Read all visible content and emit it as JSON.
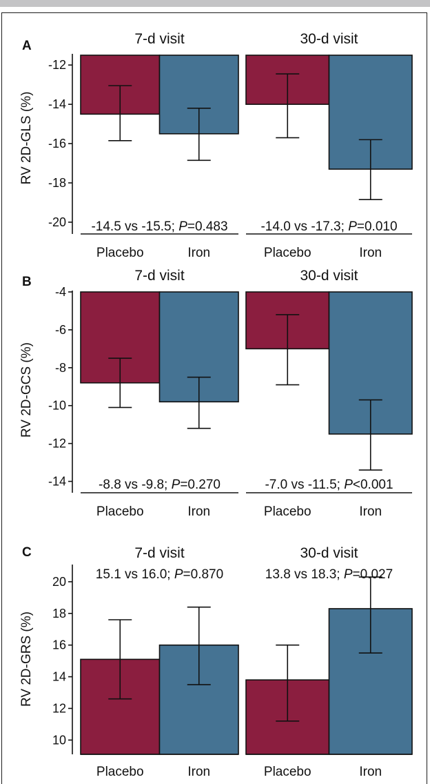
{
  "colors": {
    "placebo": "#8b1e3f",
    "iron": "#457393",
    "axis": "#111111"
  },
  "chart_data": [
    {
      "panel": "A",
      "type": "bar",
      "ylabel": "RV 2D-GLS (%)",
      "ylim": [
        -20.6,
        -11.5
      ],
      "yticks": [
        -12,
        -14,
        -16,
        -18,
        -20
      ],
      "bars_from": "top",
      "categories": [
        "Placebo",
        "Iron"
      ],
      "facets": [
        {
          "title": "7-d visit",
          "values": [
            -14.5,
            -15.5
          ],
          "error_low": [
            -15.85,
            -16.85
          ],
          "error_high": [
            -13.05,
            -14.2
          ],
          "annotation_prefix": "-14.5 vs -15.5; ",
          "p_label": "P",
          "p_value": "=0.483"
        },
        {
          "title": "30-d visit",
          "values": [
            -14.0,
            -17.3
          ],
          "error_low": [
            -15.7,
            -18.85
          ],
          "error_high": [
            -12.45,
            -15.8
          ],
          "annotation_prefix": "-14.0 vs -17.3; ",
          "p_label": "P",
          "p_value": "=0.010"
        }
      ]
    },
    {
      "panel": "B",
      "type": "bar",
      "ylabel": "RV 2D-GCS (%)",
      "ylim": [
        -14.6,
        -4.0
      ],
      "yticks": [
        -4,
        -6,
        -8,
        -10,
        -12,
        -14
      ],
      "bars_from": "top",
      "categories": [
        "Placebo",
        "Iron"
      ],
      "facets": [
        {
          "title": "7-d visit",
          "values": [
            -8.8,
            -9.8
          ],
          "error_low": [
            -10.1,
            -11.2
          ],
          "error_high": [
            -7.5,
            -8.5
          ],
          "annotation_prefix": "-8.8 vs -9.8; ",
          "p_label": "P",
          "p_value": "=0.270"
        },
        {
          "title": "30-d visit",
          "values": [
            -7.0,
            -11.5
          ],
          "error_low": [
            -8.9,
            -13.4
          ],
          "error_high": [
            -5.2,
            -9.7
          ],
          "annotation_prefix": "-7.0 vs -11.5; ",
          "p_label": "P",
          "p_value": "<0.001"
        }
      ]
    },
    {
      "panel": "C",
      "type": "bar",
      "ylabel": "RV 2D-GRS (%)",
      "ylim": [
        9.1,
        21.0
      ],
      "yticks": [
        10,
        12,
        14,
        16,
        18,
        20
      ],
      "bars_from": "bottom",
      "categories": [
        "Placebo",
        "Iron"
      ],
      "facets": [
        {
          "title": "7-d visit",
          "values": [
            15.1,
            16.0
          ],
          "error_low": [
            12.6,
            13.5
          ],
          "error_high": [
            17.6,
            18.4
          ],
          "annotation_prefix": "15.1 vs 16.0; ",
          "p_label": "P",
          "p_value": "=0.870"
        },
        {
          "title": "30-d visit",
          "values": [
            13.8,
            18.3
          ],
          "error_low": [
            11.2,
            15.5
          ],
          "error_high": [
            16.0,
            20.3
          ],
          "annotation_prefix": "13.8 vs 18.3; ",
          "p_label": "P",
          "p_value": "=0.027"
        }
      ]
    }
  ]
}
